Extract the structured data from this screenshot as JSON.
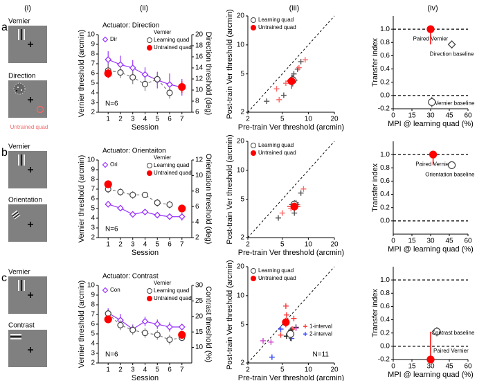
{
  "column_labels": [
    "(i)",
    "(ii)",
    "(iii)",
    "(iv)"
  ],
  "row_labels": [
    "a",
    "b",
    "c"
  ],
  "stimuli": [
    {
      "labels": [
        "Vernier",
        "Direction"
      ],
      "note": "Untrained quad"
    },
    {
      "labels": [
        "Vernier",
        "Orientation"
      ]
    },
    {
      "labels": [
        "Vernier",
        "Contrast"
      ]
    }
  ],
  "chart_data": [
    {
      "type": "line",
      "title": "Actuator: Direction",
      "xlabel": "Session",
      "ylabel": "Vernier threshold (arcmin)",
      "y2label": "Direction threshold (deg)",
      "xlim": [
        0.2,
        7.8
      ],
      "xticks": [
        1,
        2,
        3,
        4,
        5,
        6,
        7
      ],
      "ylim": [
        2,
        10
      ],
      "yticks": [
        2,
        3,
        4,
        5,
        6,
        7,
        8,
        9,
        10
      ],
      "y2lim": [
        6,
        20
      ],
      "y2ticks": [
        6,
        8,
        10,
        12,
        14,
        16,
        18,
        20
      ],
      "legend_title": "Vernier",
      "annotation": "N=6",
      "series": [
        {
          "name": "Dir",
          "axis": "y2",
          "color": "#9933ff",
          "marker": "diamond",
          "x": [
            1,
            2,
            3,
            4,
            5,
            6,
            7
          ],
          "values": [
            15.5,
            14.6,
            14,
            12.8,
            11.8,
            11,
            10.5
          ],
          "errors": [
            1.5,
            1.6,
            1.4,
            1.3,
            1.5,
            2,
            1.5
          ]
        },
        {
          "name": "Learning quad",
          "color": "#808080",
          "marker": "open-circle",
          "dashed": true,
          "x": [
            1,
            2,
            3,
            4,
            5,
            6
          ],
          "values": [
            6.3,
            6.1,
            5.6,
            4.9,
            5.4,
            4.0
          ],
          "errors": [
            0.7,
            0.6,
            0.7,
            0.7,
            0.6,
            0.6
          ]
        },
        {
          "name": "Untrained quad",
          "color": "#ff0000",
          "marker": "filled-circle",
          "line": false,
          "x": [
            1,
            7
          ],
          "values": [
            6.0,
            4.6
          ],
          "errors": [
            0.5,
            0.6
          ]
        }
      ]
    },
    {
      "type": "scatter",
      "log_scale": true,
      "diagonal": true,
      "xlabel": "Pre-train Ver threshold (arcmin)",
      "ylabel": "Post-train Ver threshold (arcmin)",
      "xlim": [
        2,
        20
      ],
      "ylim": [
        2,
        20
      ],
      "xticks": [
        2,
        5,
        10,
        20
      ],
      "yticks": [
        2,
        5,
        10,
        20
      ],
      "legend": "upper left",
      "series": [
        {
          "color": "#555555",
          "marker": "plus",
          "x": [
            8.2,
            6.8,
            5.2,
            3.3,
            7.5
          ],
          "values": [
            6.7,
            5.0,
            3.0,
            2.6,
            5.6
          ]
        },
        {
          "color": "#ff6666",
          "marker": "plus",
          "x": [
            9.2,
            4.3,
            4.6,
            7.8,
            5.5
          ],
          "values": [
            7.0,
            3.5,
            2.7,
            5.8,
            4.0
          ]
        },
        {
          "name": "Learning quad",
          "color": "#808080",
          "marker": "open-circle",
          "x": [
            6.6
          ],
          "values": [
            4.3
          ],
          "errors": [
            0.6
          ],
          "x_errors": [
            0.9
          ]
        },
        {
          "name": "Untrained quad",
          "color": "#ff0000",
          "marker": "filled-circle",
          "x": [
            6.4
          ],
          "values": [
            4.2
          ],
          "errors": [
            0.7
          ],
          "x_errors": [
            0.8
          ]
        }
      ]
    },
    {
      "type": "scatter",
      "xlabel": "MPI @ learning quad (%)",
      "ylabel": "Transfer index",
      "xlim": [
        0,
        60
      ],
      "ylim": [
        -0.2,
        1.2
      ],
      "xticks": [
        0,
        15,
        30,
        45,
        60
      ],
      "yticks": [
        -0.2,
        {
          "value": 0,
          "label": "0.0"
        },
        0.2,
        0.4,
        0.6,
        0.8,
        {
          "value": 1,
          "label": "1.0"
        }
      ],
      "reference_lines": [
        0,
        1
      ],
      "connect_pair": true,
      "series": [
        {
          "name": "Paired Vernier",
          "label_position": "below",
          "color": "#ff0000",
          "marker": "filled-circle",
          "x": [
            30
          ],
          "values": [
            1.0
          ],
          "errors": [
            0.04
          ],
          "x_errors": [
            1.5
          ]
        },
        {
          "name": "Direction baseline",
          "label_position": "below",
          "color": "#808080",
          "marker": "open-diamond",
          "x": [
            47
          ],
          "values": [
            0.77
          ],
          "errors": [
            0.06
          ],
          "x_errors": [
            3
          ]
        },
        {
          "name": "Vernier baseline",
          "label_position": "right",
          "color": "#808080",
          "marker": "open-circle",
          "x": [
            31
          ],
          "values": [
            -0.1
          ],
          "errors": [
            0.08
          ],
          "x_errors": [
            3
          ]
        }
      ]
    },
    {
      "type": "line",
      "title": "Actuator: Orientaiton",
      "xlabel": "Session",
      "ylabel": "Vernier threshold (arcmin)",
      "y2label": "Orientation threshold (deg)",
      "xlim": [
        0.2,
        7.8
      ],
      "xticks": [
        1,
        2,
        3,
        4,
        5,
        6,
        7
      ],
      "ylim": [
        2,
        10
      ],
      "yticks": [
        2,
        3,
        4,
        5,
        6,
        7,
        8,
        9,
        10
      ],
      "y2lim": [
        2,
        12
      ],
      "y2ticks": [
        2,
        4,
        6,
        8,
        10,
        12
      ],
      "legend_title": "Vernier",
      "annotation": "N=6",
      "series": [
        {
          "name": "Ori",
          "axis": "y2",
          "color": "#9933ff",
          "marker": "diamond",
          "x": [
            1,
            2,
            3,
            4,
            5,
            6,
            7
          ],
          "values": [
            6.3,
            5.8,
            5.0,
            5.3,
            4.9,
            4.7,
            4.7
          ],
          "errors": [
            0.4,
            0.4,
            0.3,
            0.3,
            0.3,
            0.4,
            0.5
          ]
        },
        {
          "name": "Learning quad",
          "color": "#808080",
          "marker": "open-circle",
          "dashed": true,
          "x": [
            1,
            2,
            3,
            4,
            5,
            6
          ],
          "values": [
            7.0,
            6.7,
            6.4,
            6.4,
            5.6,
            5.4
          ],
          "errors": [
            0.4,
            0.4,
            0.4,
            0.3,
            0.4,
            0.4
          ]
        },
        {
          "name": "Untrained quad",
          "color": "#ff0000",
          "marker": "filled-circle",
          "line": false,
          "x": [
            1,
            7
          ],
          "values": [
            7.5,
            5.0
          ],
          "errors": [
            0.4,
            0.4
          ]
        }
      ]
    },
    {
      "type": "scatter",
      "log_scale": true,
      "diagonal": true,
      "xlabel": "Pre-train Ver threshold (arcmin)",
      "ylabel": "Post-train Ver threshold (arcmin)",
      "xlim": [
        2,
        20
      ],
      "ylim": [
        2,
        20
      ],
      "xticks": [
        2,
        5,
        10,
        20
      ],
      "yticks": [
        2,
        5,
        10,
        20
      ],
      "legend": "upper left",
      "series": [
        {
          "color": "#555555",
          "marker": "plus",
          "x": [
            8.2,
            4.5,
            6.9,
            7.2
          ],
          "values": [
            5.8,
            3.2,
            3.6,
            4.6
          ]
        },
        {
          "color": "#ff6666",
          "marker": "plus",
          "x": [
            8.8,
            5.0,
            6.3,
            7.5
          ],
          "values": [
            6.4,
            3.6,
            4.0,
            4.4
          ]
        },
        {
          "name": "Learning quad",
          "color": "#808080",
          "marker": "open-circle",
          "x": [
            6.9
          ],
          "values": [
            4.4
          ],
          "errors": [
            0.5
          ],
          "x_errors": [
            0.9
          ]
        },
        {
          "name": "Untrained quad",
          "color": "#ff0000",
          "marker": "filled-circle",
          "x": [
            6.9
          ],
          "values": [
            4.2
          ],
          "errors": [
            0.4
          ],
          "x_errors": [
            1.2
          ]
        }
      ]
    },
    {
      "type": "scatter",
      "xlabel": "MPI @ learning quad (%)",
      "ylabel": "Transfer index",
      "xlim": [
        0,
        60
      ],
      "ylim": [
        -0.2,
        1.2
      ],
      "xticks": [
        0,
        15,
        30,
        45,
        60
      ],
      "yticks": [
        {
          "value": 0,
          "label": "0.0"
        },
        0.2,
        0.4,
        0.6,
        0.8,
        {
          "value": 1,
          "label": "1.0"
        }
      ],
      "reference_lines": [
        0,
        1
      ],
      "connect_pair": true,
      "series": [
        {
          "name": "Paired Vernier",
          "label_position": "below",
          "color": "#ff0000",
          "marker": "filled-circle",
          "x": [
            32
          ],
          "values": [
            1.0
          ],
          "errors": [
            0.04
          ],
          "x_errors": [
            1.5
          ]
        },
        {
          "name": "Orientation baseline",
          "label_position": "below",
          "color": "#808080",
          "marker": "open-circle",
          "x": [
            47
          ],
          "values": [
            0.84
          ],
          "errors": [
            0.05
          ],
          "x_errors": [
            3
          ]
        }
      ]
    },
    {
      "type": "line",
      "title": "Actuator: Contrast",
      "xlabel": "Session",
      "ylabel": "Vernier threshold (arcmin)",
      "y2label": "Contrast threshold (%)",
      "xlim": [
        0.2,
        7.8
      ],
      "xticks": [
        1,
        2,
        3,
        4,
        5,
        6,
        7
      ],
      "ylim": [
        2,
        10
      ],
      "yticks": [
        2,
        3,
        4,
        5,
        6,
        7,
        8,
        9,
        10
      ],
      "y2lim": [
        5,
        30
      ],
      "y2ticks": [
        10,
        15,
        20,
        25,
        30
      ],
      "legend_title": "Vernier",
      "annotation": "N=6",
      "series": [
        {
          "name": "Con",
          "axis": "y2",
          "color": "#9933ff",
          "marker": "diamond",
          "x": [
            1,
            2,
            3,
            4,
            5,
            6,
            7
          ],
          "values": [
            21.1,
            18.8,
            15.9,
            18.4,
            17.5,
            16.6,
            16.6
          ],
          "errors": [
            1.5,
            2,
            1.5,
            1.5,
            1.5,
            1.5,
            1
          ]
        },
        {
          "name": "Learning quad",
          "color": "#808080",
          "marker": "open-circle",
          "dashed": true,
          "x": [
            1,
            2,
            3,
            4,
            5,
            6,
            7
          ],
          "values": [
            7.1,
            5.9,
            5.4,
            5.1,
            4.9,
            4.4,
            4.6
          ],
          "errors": [
            0.4,
            0.5,
            0.5,
            0.5,
            0.5,
            0.5,
            0.3
          ]
        },
        {
          "name": "Untrained quad",
          "color": "#ff0000",
          "marker": "filled-circle",
          "line": false,
          "x": [
            1,
            7
          ],
          "values": [
            6.5,
            4.9
          ],
          "errors": [
            0.4,
            0.4
          ]
        }
      ]
    },
    {
      "type": "scatter",
      "log_scale": true,
      "diagonal": true,
      "xlabel": "Pre-train Ver threshold (arcmin)",
      "ylabel": "Post-train Ver threshold (arcmin)",
      "xlim": [
        2,
        20
      ],
      "ylim": [
        2,
        20
      ],
      "xticks": [
        2,
        5,
        10,
        20
      ],
      "yticks": [
        2,
        5,
        10,
        20
      ],
      "legend": "upper left",
      "annotation": "N=11",
      "series": [
        {
          "name": "1-interval",
          "color": "#ff3333",
          "marker": "plus",
          "x": [
            5.5,
            5.6,
            6.8,
            4.8,
            6.5
          ],
          "values": [
            7.8,
            6.3,
            5.8,
            3.9,
            4.5
          ]
        },
        {
          "name": "2-interval",
          "color": "#3344ff",
          "marker": "plus",
          "x": [
            3.8,
            4.8,
            6.4
          ],
          "values": [
            2.3,
            4.5,
            3.6
          ]
        },
        {
          "color": "#222222",
          "marker": "plus",
          "x": [
            6.3,
            7.2,
            5.6
          ],
          "values": [
            4.4,
            4.7,
            3.8
          ]
        },
        {
          "color": "#cc44cc",
          "marker": "plus",
          "x": [
            3.0,
            3.7,
            7.2
          ],
          "values": [
            3.4,
            3.3,
            4.6
          ]
        },
        {
          "name": "Learning quad",
          "color": "#808080",
          "marker": "open-circle",
          "x": [
            6.2
          ],
          "values": [
            4.0
          ],
          "errors": [
            0.6
          ],
          "x_errors": [
            0.7
          ]
        },
        {
          "name": "Untrained quad",
          "color": "#ff0000",
          "marker": "filled-circle",
          "x": [
            5.5
          ],
          "values": [
            5.3
          ],
          "errors": [
            0.6
          ],
          "x_errors": [
            0.5
          ]
        }
      ]
    },
    {
      "type": "scatter",
      "xlabel": "MPI @ learning quad (%)",
      "ylabel": "Transfer index",
      "xlim": [
        0,
        60
      ],
      "ylim": [
        -0.2,
        1.2
      ],
      "xticks": [
        0,
        15,
        30,
        45,
        60
      ],
      "yticks": [
        -0.2,
        {
          "value": 0,
          "label": "0.0"
        },
        0.2,
        0.4,
        0.6,
        0.8,
        {
          "value": 1,
          "label": "1.0"
        }
      ],
      "reference_lines": [
        0,
        1
      ],
      "connect_pair": true,
      "series": [
        {
          "name": "Paired Vernier",
          "label_position": "above",
          "color": "#ff0000",
          "marker": "filled-circle",
          "x": [
            30
          ],
          "values": [
            -0.2
          ],
          "errors": [
            0.03
          ],
          "x_errors": [
            1.5
          ]
        },
        {
          "name": "Contrast baseline",
          "label_position": "right",
          "color": "#808080",
          "marker": "open-circle",
          "x": [
            35
          ],
          "values": [
            0.22
          ],
          "errors": [
            0.07
          ],
          "x_errors": [
            3
          ]
        }
      ]
    }
  ]
}
